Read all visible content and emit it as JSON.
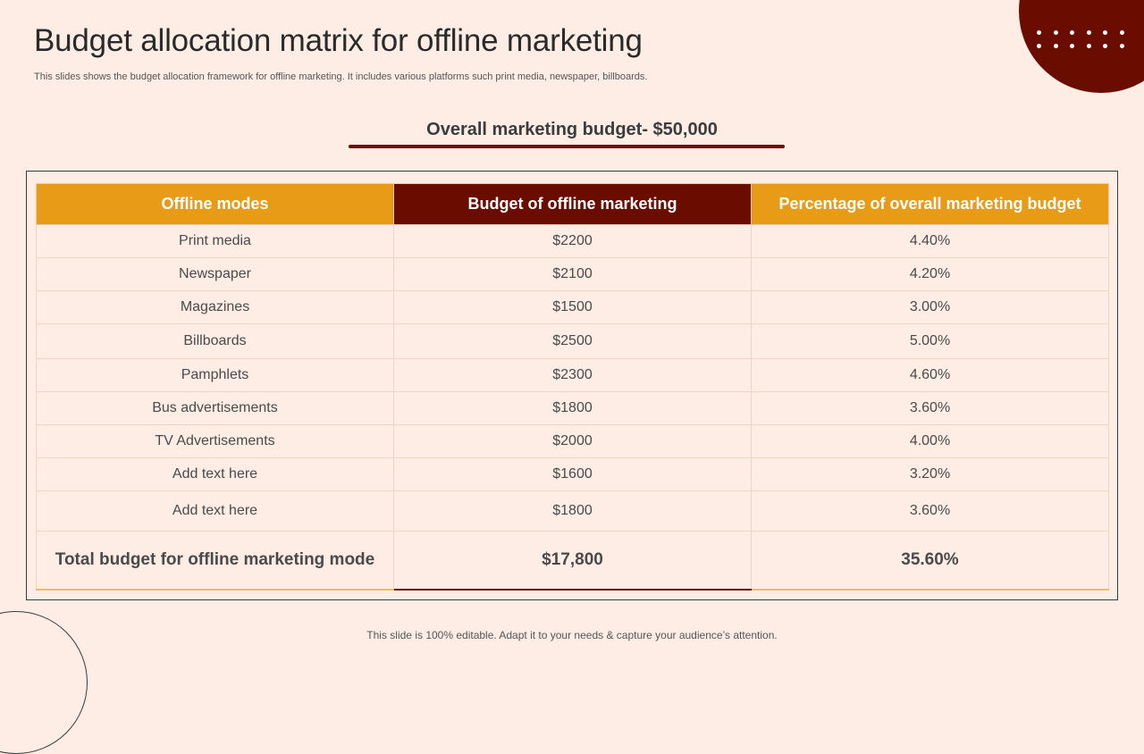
{
  "slide": {
    "title": "Budget allocation matrix for offline marketing",
    "subtitle": "This slides shows the budget allocation framework for offline marketing. It includes various platforms such print media, newspaper, billboards.",
    "budget_heading": "Overall marketing budget- $50,000",
    "footer": "This slide is 100% editable. Adapt it to your needs & capture your audience’s attention."
  },
  "colors": {
    "background": "#fdede4",
    "accent_orange": "#e79b16",
    "accent_maroon": "#6b0c00"
  },
  "table": {
    "headers": [
      "Offline modes",
      "Budget of offline marketing",
      "Percentage of overall marketing budget"
    ],
    "rows": [
      {
        "mode": "Print media",
        "budget": "$2200",
        "percent": "4.40%"
      },
      {
        "mode": "Newspaper",
        "budget": "$2100",
        "percent": "4.20%"
      },
      {
        "mode": "Magazines",
        "budget": "$1500",
        "percent": "3.00%"
      },
      {
        "mode": "Billboards",
        "budget": "$2500",
        "percent": "5.00%"
      },
      {
        "mode": "Pamphlets",
        "budget": "$2300",
        "percent": "4.60%"
      },
      {
        "mode": "Bus advertisements",
        "budget": "$1800",
        "percent": "3.60%"
      },
      {
        "mode": "TV Advertisements",
        "budget": "$2000",
        "percent": "4.00%"
      },
      {
        "mode": "Add text here",
        "budget": "$1600",
        "percent": "3.20%"
      },
      {
        "mode": "Add text here",
        "budget": "$1800",
        "percent": "3.60%"
      }
    ],
    "total": {
      "mode": "Total budget for offline marketing mode",
      "budget": "$17,800",
      "percent": "35.60%"
    }
  }
}
